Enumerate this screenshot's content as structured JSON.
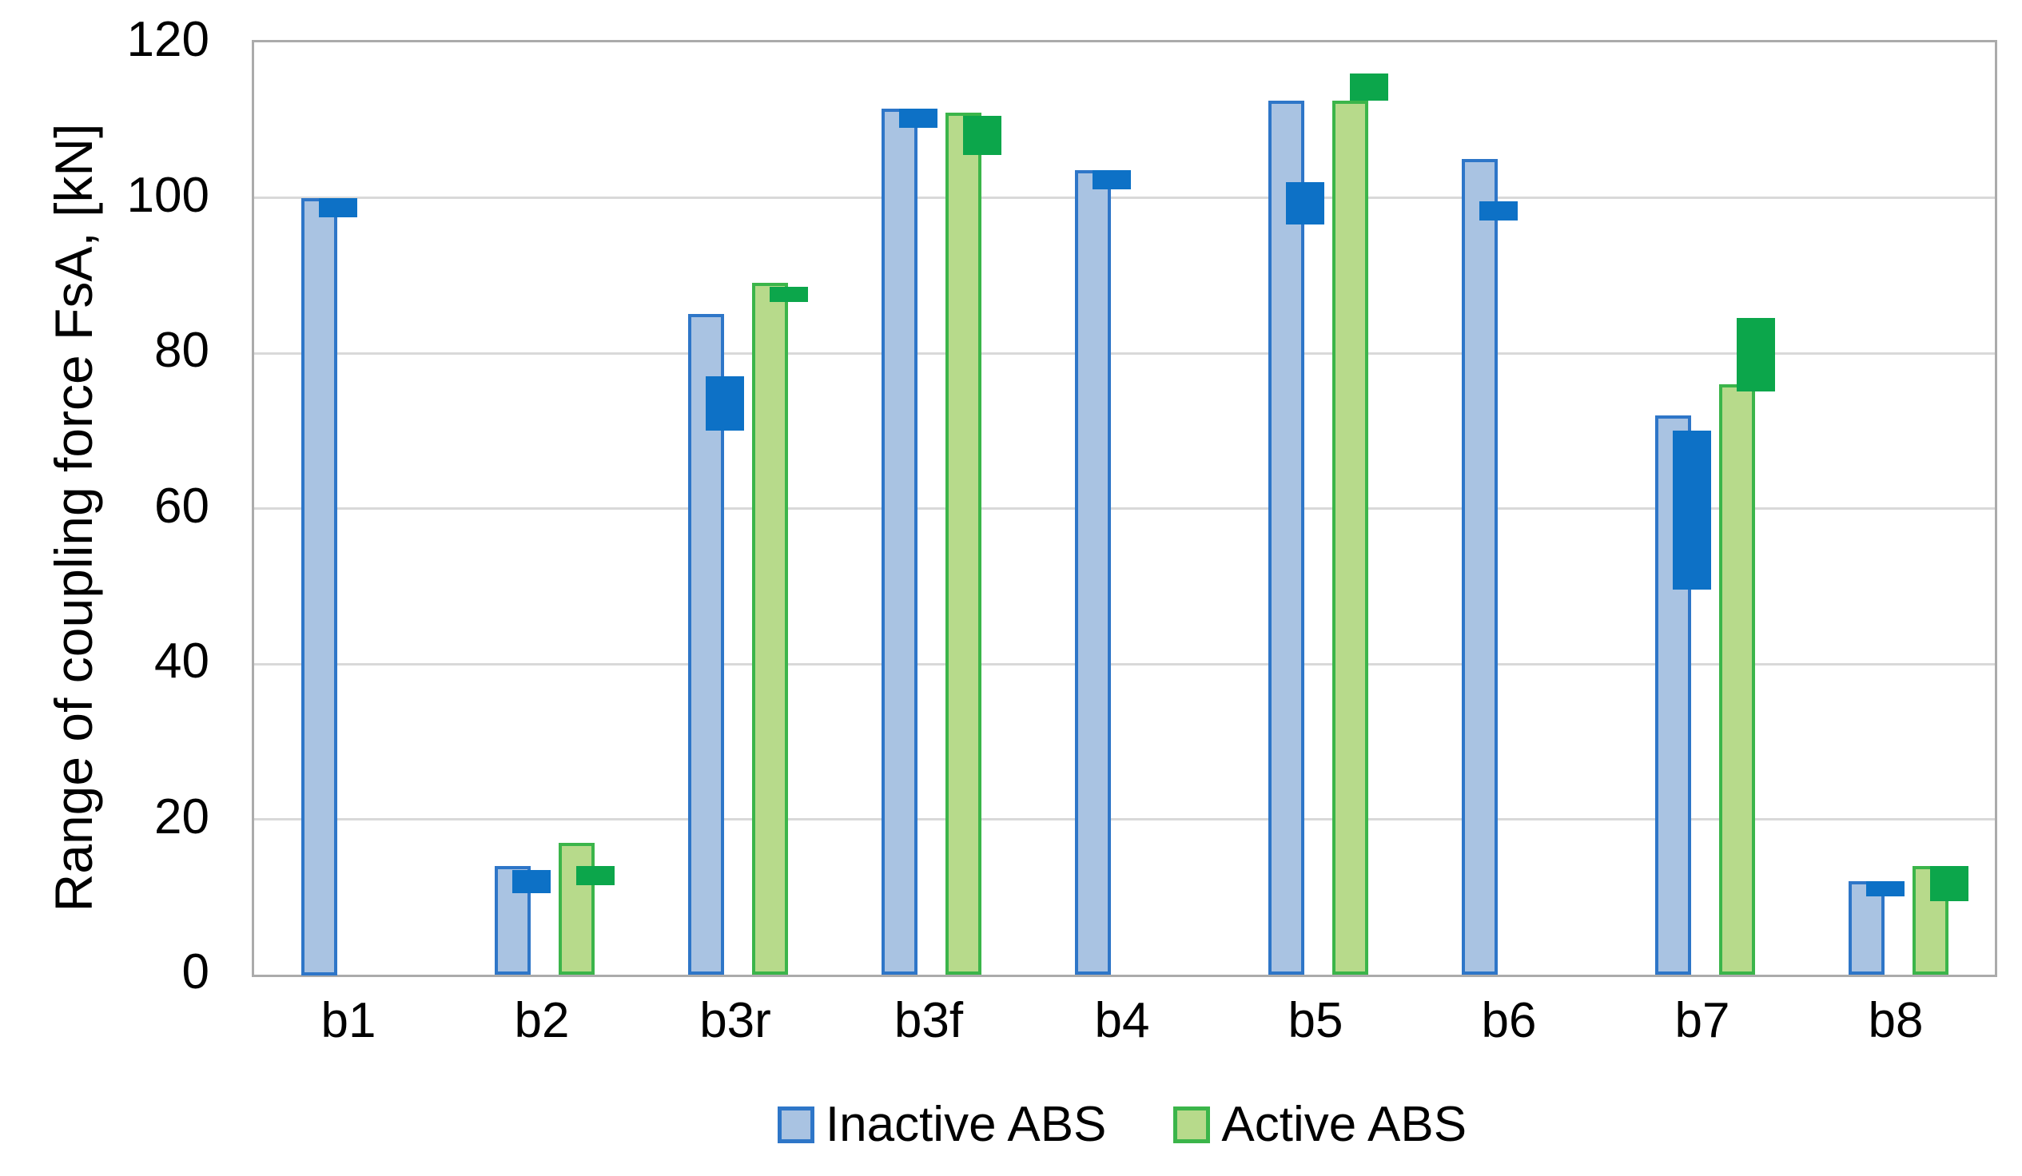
{
  "chart_data": {
    "type": "bar",
    "title": "",
    "xlabel": "",
    "ylabel": "Range of coupling force FsA, [kN]",
    "ylim": [
      0,
      120
    ],
    "ytick_step": 20,
    "grid": true,
    "legend_position": "bottom",
    "categories": [
      "b1",
      "b2",
      "b3r",
      "b3f",
      "b4",
      "b5",
      "b6",
      "b7",
      "b8"
    ],
    "series": [
      {
        "name": "Inactive ABS",
        "fill_color": "#a9c3e2",
        "border_color": "#2e76c8",
        "marker_color": "#0d71c6",
        "values": [
          100,
          14,
          85,
          111.5,
          103.5,
          112.5,
          105,
          72,
          12
        ],
        "marker_ranges": [
          [
            97.5,
            100
          ],
          [
            10.5,
            13.5
          ],
          [
            70,
            77
          ],
          [
            109,
            111.5
          ],
          [
            101,
            103.5
          ],
          [
            96.5,
            102
          ],
          [
            97,
            99.5
          ],
          [
            49.5,
            70
          ],
          [
            10,
            12
          ]
        ]
      },
      {
        "name": "Active ABS",
        "fill_color": "#b7da8b",
        "border_color": "#3bb54a",
        "marker_color": "#0ca64b",
        "values": [
          null,
          17,
          89,
          111,
          null,
          112.5,
          null,
          76,
          14
        ],
        "marker_ranges": [
          null,
          [
            11.5,
            14
          ],
          [
            86.5,
            88.5
          ],
          [
            105.5,
            110.5
          ],
          null,
          [
            112.5,
            116
          ],
          null,
          [
            75,
            84.5
          ],
          [
            9.5,
            14
          ]
        ]
      }
    ],
    "colors": {
      "gridline": "#d9d9d9",
      "axis_border": "#ababab",
      "text": "#000000"
    }
  }
}
